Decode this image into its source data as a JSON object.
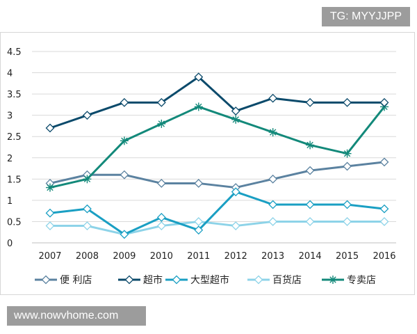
{
  "watermark": {
    "top": "TG: MYYJJPP",
    "bottom": "www.nowvhome.com"
  },
  "chart_data": {
    "type": "line",
    "title": "",
    "xlabel": "",
    "ylabel": "",
    "x": [
      "2007",
      "2008",
      "2009",
      "2010",
      "2011",
      "2012",
      "2013",
      "2014",
      "2015",
      "2016"
    ],
    "yticks": [
      "0",
      "0.5",
      "1",
      "1.5",
      "2",
      "2.5",
      "3",
      "3.5",
      "4",
      "4.5"
    ],
    "ylim": [
      0,
      4.5
    ],
    "grid": "horizontal",
    "legend_position": "bottom",
    "series": [
      {
        "name": "便 利店",
        "color": "#5b82a0",
        "marker": "diamond",
        "values": [
          1.4,
          1.6,
          1.6,
          1.4,
          1.4,
          1.3,
          1.5,
          1.7,
          1.8,
          1.9
        ]
      },
      {
        "name": "超市",
        "color": "#0b4a6b",
        "marker": "diamond",
        "values": [
          2.7,
          3.0,
          3.3,
          3.3,
          3.9,
          3.1,
          3.4,
          3.3,
          3.3,
          3.3
        ]
      },
      {
        "name": "大型超市",
        "color": "#1a9fc3",
        "marker": "diamond",
        "values": [
          0.7,
          0.8,
          0.2,
          0.6,
          0.3,
          1.2,
          0.9,
          0.9,
          0.9,
          0.8
        ]
      },
      {
        "name": "百货店",
        "color": "#8dd3e8",
        "marker": "diamond",
        "values": [
          0.4,
          0.4,
          0.2,
          0.4,
          0.5,
          0.4,
          0.5,
          0.5,
          0.5,
          0.5
        ]
      },
      {
        "name": "专卖店",
        "color": "#13897a",
        "marker": "star",
        "values": [
          1.3,
          1.5,
          2.4,
          2.8,
          3.2,
          2.9,
          2.6,
          2.3,
          2.1,
          3.2
        ]
      }
    ]
  }
}
